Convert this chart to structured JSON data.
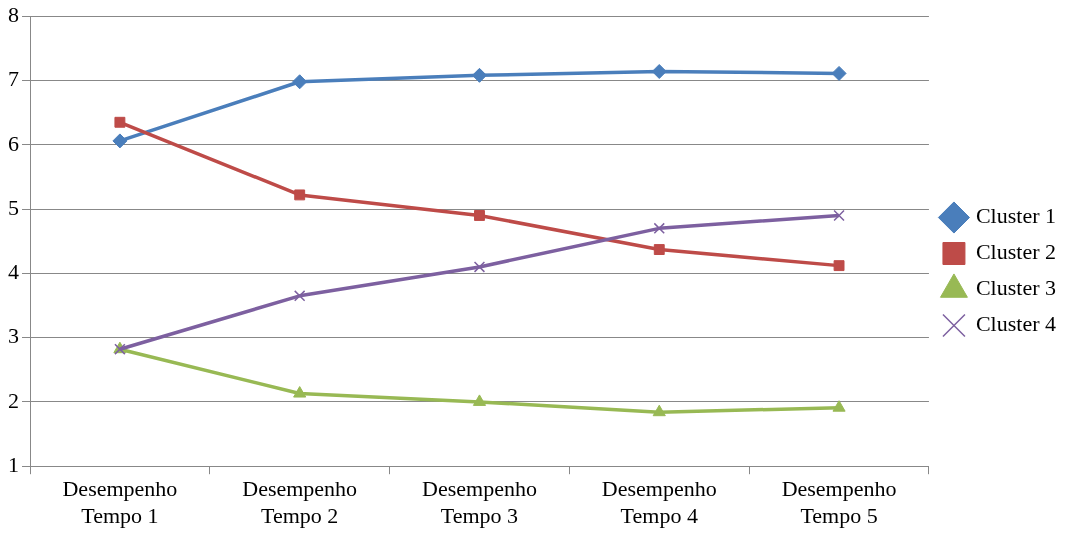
{
  "chart_data": {
    "type": "line",
    "categories": [
      "Desempenho Tempo 1",
      "Desempenho Tempo 2",
      "Desempenho Tempo 3",
      "Desempenho Tempo 4",
      "Desempenho Tempo 5"
    ],
    "series": [
      {
        "name": "Cluster 1",
        "color": "#4a7ebb",
        "marker": "diamond",
        "values": [
          6.06,
          6.98,
          7.08,
          7.14,
          7.11
        ]
      },
      {
        "name": "Cluster 2",
        "color": "#be4b48",
        "marker": "square",
        "values": [
          6.35,
          5.22,
          4.9,
          4.37,
          4.12
        ]
      },
      {
        "name": "Cluster 3",
        "color": "#98b954",
        "marker": "triangle",
        "values": [
          2.82,
          2.13,
          2.0,
          1.84,
          1.91
        ]
      },
      {
        "name": "Cluster 4",
        "color": "#7d60a0",
        "marker": "cross",
        "values": [
          2.82,
          3.65,
          4.1,
          4.7,
          4.9
        ]
      }
    ],
    "ylim": [
      1,
      8
    ],
    "yticks": [
      1,
      2,
      3,
      4,
      5,
      6,
      7,
      8
    ],
    "grid": "y",
    "legend": "right",
    "line_style": "solid"
  }
}
